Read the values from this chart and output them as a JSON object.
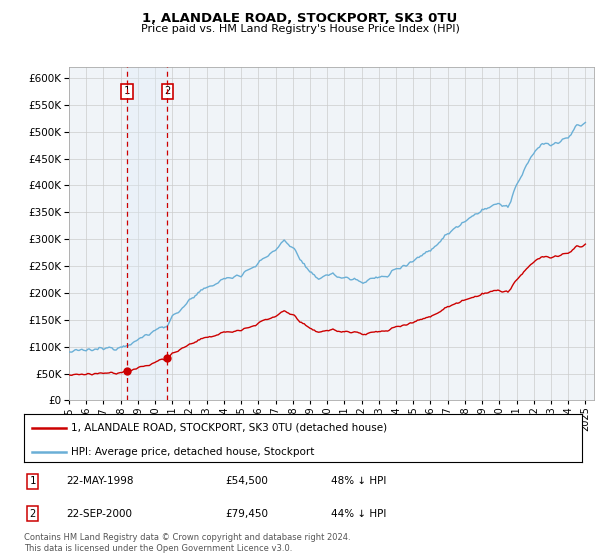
{
  "title": "1, ALANDALE ROAD, STOCKPORT, SK3 0TU",
  "subtitle": "Price paid vs. HM Land Registry's House Price Index (HPI)",
  "legend_line1": "1, ALANDALE ROAD, STOCKPORT, SK3 0TU (detached house)",
  "legend_line2": "HPI: Average price, detached house, Stockport",
  "transaction1_date": "22-MAY-1998",
  "transaction1_price": "£54,500",
  "transaction1_hpi": "48% ↓ HPI",
  "transaction1_year": 1998.38,
  "transaction1_value": 54500,
  "transaction2_date": "22-SEP-2000",
  "transaction2_price": "£79,450",
  "transaction2_hpi": "44% ↓ HPI",
  "transaction2_year": 2000.72,
  "transaction2_value": 79450,
  "footer": "Contains HM Land Registry data © Crown copyright and database right 2024.\nThis data is licensed under the Open Government Licence v3.0.",
  "property_color": "#cc0000",
  "hpi_color": "#6aafd6",
  "shading_color": "#e0eef8",
  "background_color": "#f0f4f8",
  "grid_color": "#cccccc",
  "ylim": [
    0,
    620000
  ],
  "yticks": [
    0,
    50000,
    100000,
    150000,
    200000,
    250000,
    300000,
    350000,
    400000,
    450000,
    500000,
    550000,
    600000
  ],
  "xlim_start": 1995.0,
  "xlim_end": 2025.5,
  "xticks": [
    1995,
    1996,
    1997,
    1998,
    1999,
    2000,
    2001,
    2002,
    2003,
    2004,
    2005,
    2006,
    2007,
    2008,
    2009,
    2010,
    2011,
    2012,
    2013,
    2014,
    2015,
    2016,
    2017,
    2018,
    2019,
    2020,
    2021,
    2022,
    2023,
    2024,
    2025
  ]
}
